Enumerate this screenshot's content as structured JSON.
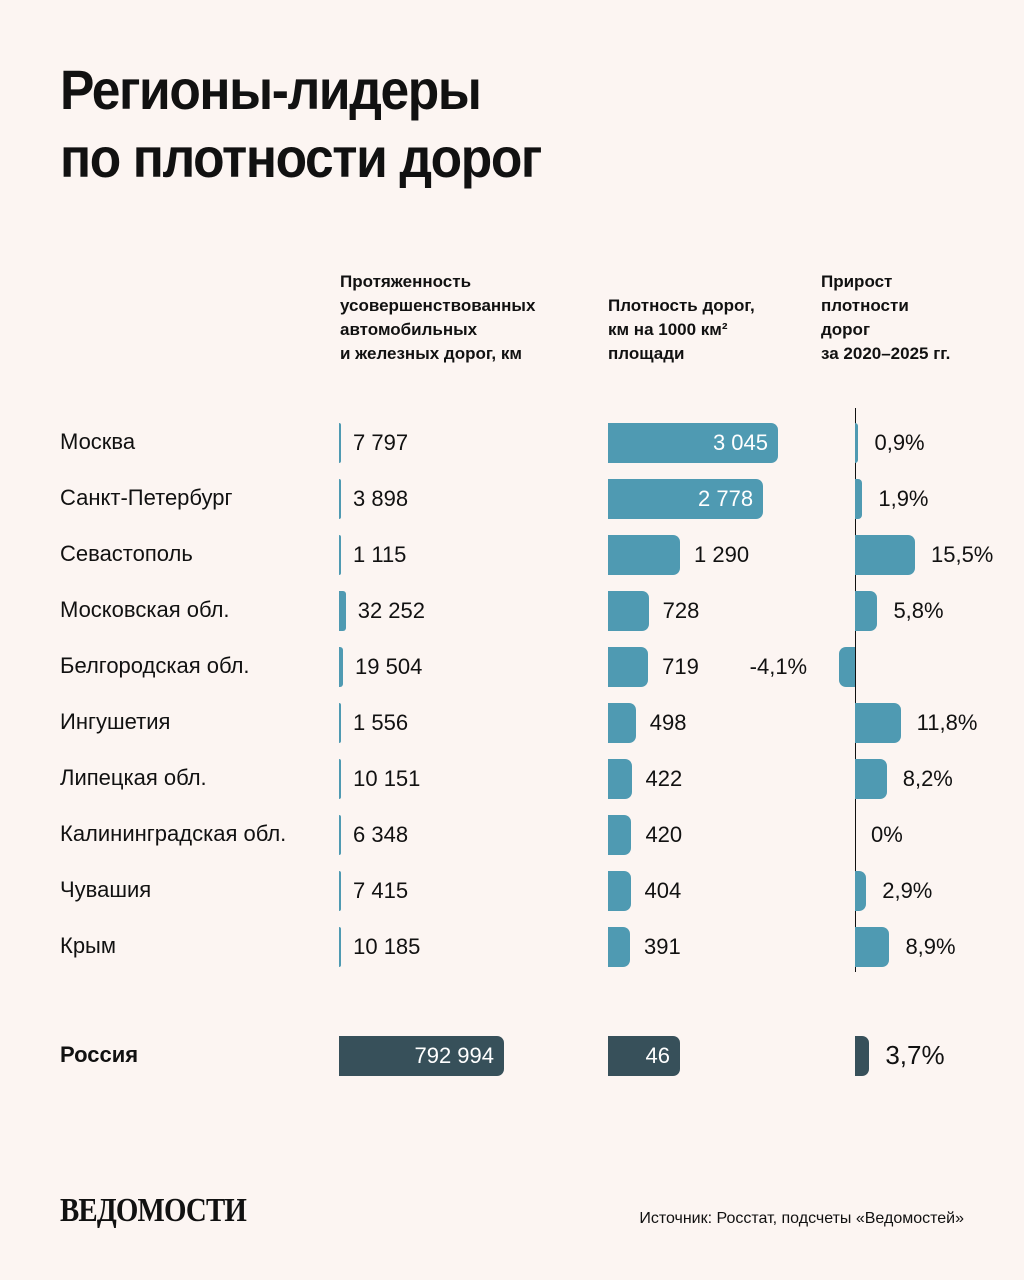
{
  "title_line1": "Регионы-лидеры",
  "title_line2": "по плотности дорог",
  "chart_data": {
    "type": "table",
    "columns": [
      "Протяженность усовершенствованных автомобильных и железных дорог, км",
      "Плотность дорог, км на 1000 км² площади",
      "Прирост плотности дорог за 2020–2025 гг."
    ],
    "columns_display": [
      "Протяженность\nусовершенствованных\nавтомобильных\nи железных дорог, км",
      "Плотность дорог,\nкм на 1000 км²\nплощади",
      "Прирост\nплотности\nдорог\nза 2020–2025 гг."
    ],
    "rows": [
      {
        "region": "Москва",
        "length": 7797,
        "length_label": "7 797",
        "density": 3045,
        "density_label": "3 045",
        "growth": 0.9,
        "growth_label": "0,9%"
      },
      {
        "region": "Санкт-Петербург",
        "length": 3898,
        "length_label": "3 898",
        "density": 2778,
        "density_label": "2 778",
        "growth": 1.9,
        "growth_label": "1,9%"
      },
      {
        "region": "Севастополь",
        "length": 1115,
        "length_label": "1 115",
        "density": 1290,
        "density_label": "1 290",
        "growth": 15.5,
        "growth_label": "15,5%"
      },
      {
        "region": "Московская обл.",
        "length": 32252,
        "length_label": "32 252",
        "density": 728,
        "density_label": "728",
        "growth": 5.8,
        "growth_label": "5,8%"
      },
      {
        "region": "Белгородская обл.",
        "length": 19504,
        "length_label": "19 504",
        "density": 719,
        "density_label": "719",
        "growth": -4.1,
        "growth_label": "-4,1%"
      },
      {
        "region": "Ингушетия",
        "length": 1556,
        "length_label": "1 556",
        "density": 498,
        "density_label": "498",
        "growth": 11.8,
        "growth_label": "11,8%"
      },
      {
        "region": "Липецкая обл.",
        "length": 10151,
        "length_label": "10 151",
        "density": 422,
        "density_label": "422",
        "growth": 8.2,
        "growth_label": "8,2%"
      },
      {
        "region": "Калининградская обл.",
        "length": 6348,
        "length_label": "6 348",
        "density": 420,
        "density_label": "420",
        "growth": 0,
        "growth_label": "0%"
      },
      {
        "region": "Чувашия",
        "length": 7415,
        "length_label": "7 415",
        "density": 404,
        "density_label": "404",
        "growth": 2.9,
        "growth_label": "2,9%"
      },
      {
        "region": "Крым",
        "length": 10185,
        "length_label": "10 185",
        "density": 391,
        "density_label": "391",
        "growth": 8.9,
        "growth_label": "8,9%"
      }
    ],
    "total": {
      "region": "Россия",
      "length": 792994,
      "length_label": "792 994",
      "density": 46,
      "density_label": "46",
      "growth": 3.7,
      "growth_label": "3,7%"
    }
  },
  "colors": {
    "bar": "#4f9ab2",
    "total_bar": "#37505a",
    "background": "#fcf5f2"
  },
  "logo": "ВЕДОМОСТИ",
  "source": "Источник: Росстат, подсчеты «Ведомостей»"
}
